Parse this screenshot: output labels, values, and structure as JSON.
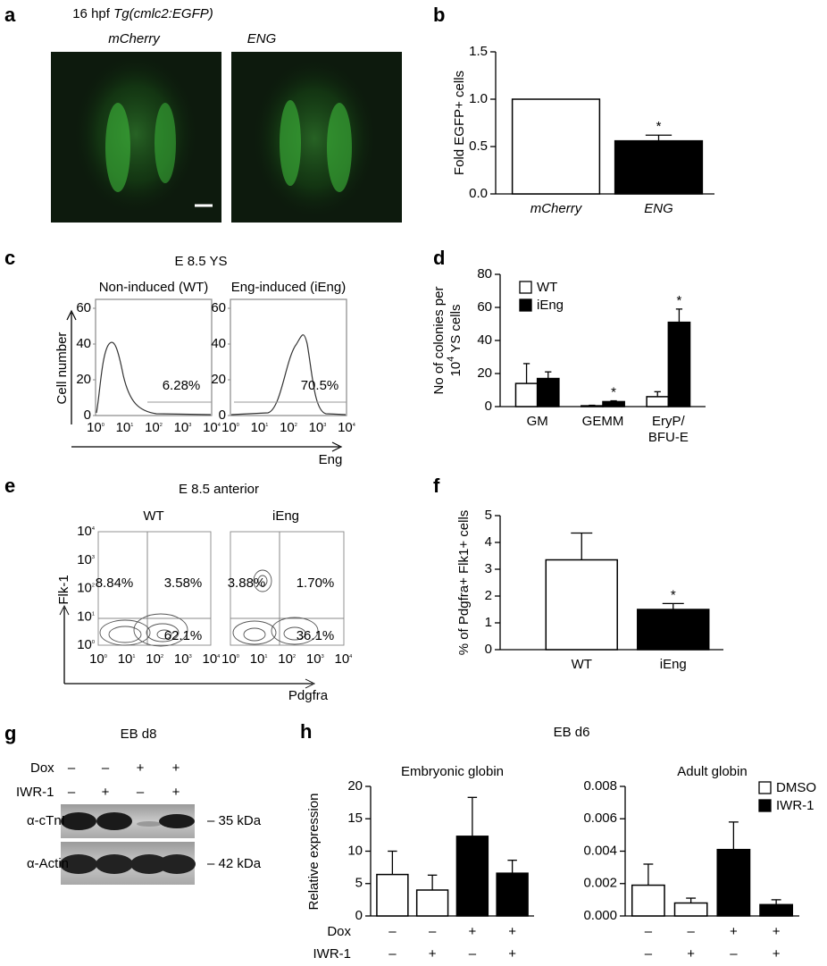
{
  "panel_a": {
    "label": "a",
    "title_prefix": "16 hpf ",
    "title_italic": "Tg(cmlc2:EGFP)",
    "images": [
      "mCherry",
      "ENG"
    ]
  },
  "panel_c": {
    "label": "c",
    "title": "E 8.5 YS",
    "plots": [
      {
        "title": "Non-induced (WT)",
        "percent": "6.28%"
      },
      {
        "title": "Eng-induced (iEng)",
        "percent": "70.5%"
      }
    ],
    "ylabel": "Cell number",
    "xlabel": "Eng",
    "yticks": [
      0,
      20,
      40,
      60
    ],
    "tick_base": "10",
    "tick_exponents": [
      "0",
      "1",
      "2",
      "3",
      "4"
    ]
  },
  "panel_e": {
    "label": "e",
    "title": "E 8.5 anterior",
    "plots": [
      {
        "title": "WT",
        "quadrants": [
          "8.84%",
          "3.58%",
          "62.1%"
        ]
      },
      {
        "title": "iEng",
        "quadrants": [
          "3.88%",
          "1.70%",
          "36.1%"
        ]
      }
    ],
    "ylabel": "Flk-1",
    "xlabel": "Pdgfra",
    "tick_base": "10",
    "tick_exponents": [
      "0",
      "1",
      "2",
      "3",
      "4"
    ]
  },
  "panel_g": {
    "label": "g",
    "title": "EB d8",
    "conditions": [
      {
        "name": "Dox",
        "signs": [
          "–",
          "–",
          "+",
          "+"
        ]
      },
      {
        "name": "IWR-1",
        "signs": [
          "–",
          "+",
          "–",
          "+"
        ]
      }
    ],
    "blots": [
      {
        "antibody": "α-cTnI",
        "size": "– 35 kDa"
      },
      {
        "antibody": "α-Actin",
        "size": "– 42 kDa"
      }
    ]
  },
  "panel_h": {
    "label": "h",
    "title": "EB d6",
    "ylabel": "Relative expression",
    "conditions": [
      {
        "name": "Dox",
        "signs": [
          "–",
          "–",
          "+",
          "+"
        ]
      },
      {
        "name": "IWR-1",
        "signs": [
          "–",
          "+",
          "–",
          "+"
        ]
      }
    ]
  },
  "chart_data": [
    {
      "type": "bar",
      "panel": "b",
      "ylabel": "Fold EGFP+ cells",
      "categories": [
        "mCherry",
        "ENG"
      ],
      "category_style": "italic",
      "values": [
        1.0,
        0.56
      ],
      "errors": [
        null,
        0.06
      ],
      "significance": [
        null,
        "*"
      ],
      "colors": [
        "#ffffff",
        "#000000"
      ],
      "ylim": [
        0,
        1.5
      ],
      "yticks": [
        {
          "value": 0,
          "label": "0.0"
        },
        0.5,
        {
          "value": 1,
          "label": "1.0"
        },
        1.5
      ]
    },
    {
      "type": "bar",
      "panel": "d",
      "ylabel": {
        "line1": "No of colonies per",
        "base": "10",
        "exponent": "4",
        "rest": " YS cells"
      },
      "categories": [
        "GM",
        "GEMM",
        "EryP/BFU-E"
      ],
      "series": [
        {
          "name": "WT",
          "color": "#ffffff",
          "values": [
            14,
            0.5,
            6
          ],
          "errors": [
            12,
            0.3,
            3
          ],
          "significance": [
            null,
            null,
            null
          ]
        },
        {
          "name": "iEng",
          "color": "#000000",
          "values": [
            17,
            3,
            51
          ],
          "errors": [
            4,
            0.5,
            8
          ],
          "significance": [
            null,
            "*",
            "*"
          ]
        }
      ],
      "legend_position": "upper left",
      "ylim": [
        0,
        80
      ],
      "yticks": [
        0,
        20,
        40,
        60,
        80
      ]
    },
    {
      "type": "bar",
      "panel": "f",
      "ylabel": "% of Pdgfra+ Flk1+ cells",
      "categories": [
        "WT",
        "iEng"
      ],
      "values": [
        3.35,
        1.5
      ],
      "errors": [
        1.0,
        0.22
      ],
      "significance": [
        null,
        "*"
      ],
      "colors": [
        "#ffffff",
        "#000000"
      ],
      "ylim": [
        0,
        5
      ],
      "yticks": [
        0,
        1,
        2,
        3,
        4,
        5
      ]
    },
    {
      "type": "bar",
      "title": "Embryonic globin",
      "categories": [
        null,
        null,
        null,
        null
      ],
      "values": [
        6.4,
        4.0,
        12.3,
        6.6
      ],
      "errors": [
        3.6,
        2.3,
        6.0,
        2.0
      ],
      "colors": [
        "#ffffff",
        "#ffffff",
        "#000000",
        "#000000"
      ],
      "ylim": [
        0,
        20
      ],
      "yticks": [
        0,
        5,
        10,
        15,
        20
      ]
    },
    {
      "type": "bar",
      "title": "Adult globin",
      "categories": [
        null,
        null,
        null,
        null
      ],
      "values": [
        0.0019,
        0.0008,
        0.0041,
        0.0007
      ],
      "errors": [
        0.0013,
        0.0003,
        0.0017,
        0.0003
      ],
      "colors": [
        "#ffffff",
        "#ffffff",
        "#000000",
        "#000000"
      ],
      "legend": [
        {
          "name": "DMSO",
          "color": "#ffffff"
        },
        {
          "name": "IWR-1",
          "color": "#000000"
        }
      ],
      "legend_position": "upper right",
      "ylim": [
        0,
        0.008
      ],
      "yticks": [
        {
          "value": 0,
          "label": "0.000"
        },
        {
          "value": 0.002,
          "label": "0.002"
        },
        {
          "value": 0.004,
          "label": "0.004"
        },
        {
          "value": 0.006,
          "label": "0.006"
        },
        {
          "value": 0.008,
          "label": "0.008"
        }
      ]
    }
  ]
}
